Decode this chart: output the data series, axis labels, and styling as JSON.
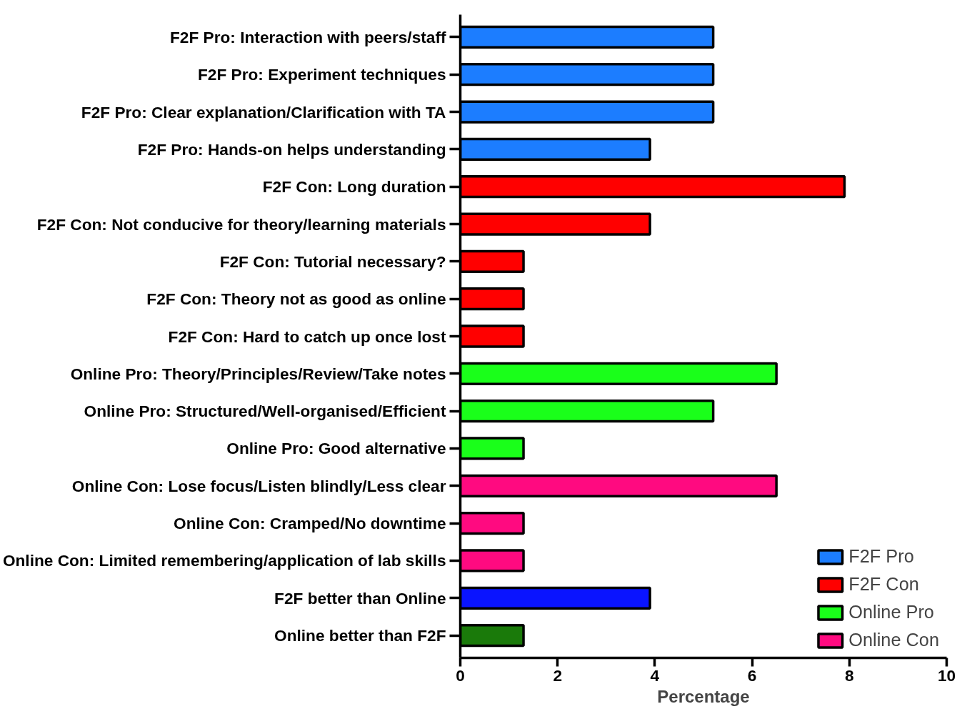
{
  "chart_data": {
    "type": "bar",
    "orientation": "horizontal",
    "xlabel": "Percentage",
    "categories": [
      "F2F Pro: Interaction with peers/staff",
      "F2F Pro: Experiment techniques",
      "F2F Pro: Clear explanation/Clarification with TA",
      "F2F Pro: Hands-on helps understanding",
      "F2F Con: Long duration",
      "F2F Con: Not conducive for theory/learning materials",
      "F2F Con: Tutorial necessary?",
      "F2F Con: Theory not as good as online",
      "F2F Con: Hard to catch up once lost",
      "Online Pro: Theory/Principles/Review/Take notes",
      "Online Pro: Structured/Well-organised/Efficient",
      "Online Pro: Good alternative",
      "Online Con: Lose focus/Listen blindly/Less clear",
      "Online Con: Cramped/No downtime",
      "Online Con: Limited remembering/application of lab skills",
      "F2F better than Online",
      "Online better than F2F"
    ],
    "series": [
      {
        "name": "F2F Pro",
        "color": "#1c7dff",
        "values": [
          5.2,
          5.2,
          5.2,
          3.9,
          null,
          null,
          null,
          null,
          null,
          null,
          null,
          null,
          null,
          null,
          null,
          null,
          null
        ]
      },
      {
        "name": "F2F Con",
        "color": "#ff0000",
        "values": [
          null,
          null,
          null,
          null,
          7.9,
          3.9,
          1.3,
          1.3,
          1.3,
          null,
          null,
          null,
          null,
          null,
          null,
          null,
          null
        ]
      },
      {
        "name": "Online Pro",
        "color": "#1aff1a",
        "values": [
          null,
          null,
          null,
          null,
          null,
          null,
          null,
          null,
          null,
          6.5,
          5.2,
          1.3,
          null,
          null,
          null,
          null,
          null
        ]
      },
      {
        "name": "Online Con",
        "color": "#ff0a80",
        "values": [
          null,
          null,
          null,
          null,
          null,
          null,
          null,
          null,
          null,
          null,
          null,
          null,
          6.5,
          1.3,
          1.3,
          null,
          null
        ]
      },
      {
        "color": "#0a14ff",
        "values": [
          null,
          null,
          null,
          null,
          null,
          null,
          null,
          null,
          null,
          null,
          null,
          null,
          null,
          null,
          null,
          3.9,
          null
        ]
      },
      {
        "color": "#1a7a0a",
        "values": [
          null,
          null,
          null,
          null,
          null,
          null,
          null,
          null,
          null,
          null,
          null,
          null,
          null,
          null,
          null,
          null,
          1.3
        ]
      }
    ],
    "xlim": [
      0,
      10
    ],
    "xticks": [
      0,
      2,
      4,
      6,
      8,
      10
    ],
    "grid": false,
    "legend": "bottom right"
  }
}
